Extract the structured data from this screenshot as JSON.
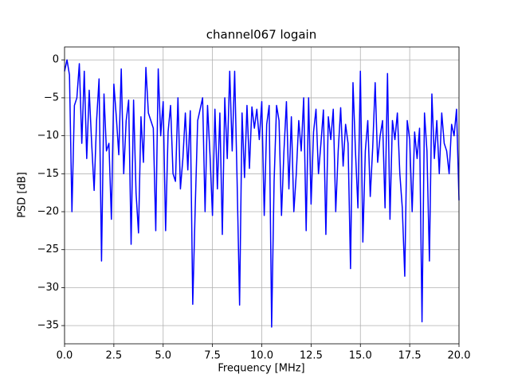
{
  "chart_data": {
    "type": "line",
    "title": "channel067 logain",
    "x_label": "Frequency [MHz]",
    "y_label": "PSD [dB]",
    "xlim": [
      0,
      20
    ],
    "ylim": [
      -37.4,
      1.7
    ],
    "xticks": [
      {
        "value": 0,
        "label": "0.0"
      },
      2.5,
      {
        "value": 5,
        "label": "5.0"
      },
      7.5,
      {
        "value": 10,
        "label": "10.0"
      },
      12.5,
      {
        "value": 15,
        "label": "15.0"
      },
      17.5,
      {
        "value": 20,
        "label": "20.0"
      }
    ],
    "yticks": [
      0,
      {
        "value": -5,
        "label": "−5"
      },
      {
        "value": -10,
        "label": "−10"
      },
      {
        "value": -15,
        "label": "−15"
      },
      {
        "value": -20,
        "label": "−20"
      },
      {
        "value": -25,
        "label": "−25"
      },
      {
        "value": -30,
        "label": "−30"
      },
      {
        "value": -35,
        "label": "−35"
      }
    ],
    "grid": true,
    "series": [
      {
        "color": "#0000ff",
        "x": [
          0,
          0.125,
          0.25,
          0.375,
          0.5,
          0.625,
          0.75,
          0.875,
          1,
          1.125,
          1.25,
          1.375,
          1.5,
          1.625,
          1.75,
          1.875,
          2,
          2.125,
          2.25,
          2.375,
          2.5,
          2.625,
          2.75,
          2.875,
          3,
          3.125,
          3.25,
          3.375,
          3.5,
          3.625,
          3.75,
          3.875,
          4,
          4.125,
          4.25,
          4.375,
          4.5,
          4.625,
          4.75,
          4.875,
          5,
          5.125,
          5.25,
          5.375,
          5.5,
          5.625,
          5.75,
          5.875,
          6,
          6.125,
          6.25,
          6.375,
          6.5,
          6.625,
          6.75,
          6.875,
          7,
          7.125,
          7.25,
          7.375,
          7.5,
          7.625,
          7.75,
          7.875,
          8,
          8.125,
          8.25,
          8.375,
          8.5,
          8.625,
          8.75,
          8.875,
          9,
          9.125,
          9.25,
          9.375,
          9.5,
          9.625,
          9.75,
          9.875,
          10,
          10.125,
          10.25,
          10.375,
          10.5,
          10.625,
          10.75,
          10.875,
          11,
          11.125,
          11.25,
          11.375,
          11.5,
          11.625,
          11.75,
          11.875,
          12,
          12.125,
          12.25,
          12.375,
          12.5,
          12.625,
          12.75,
          12.875,
          13,
          13.125,
          13.25,
          13.375,
          13.5,
          13.625,
          13.75,
          13.875,
          14,
          14.125,
          14.25,
          14.375,
          14.5,
          14.625,
          14.75,
          14.875,
          15,
          15.125,
          15.25,
          15.375,
          15.5,
          15.625,
          15.75,
          15.875,
          16,
          16.125,
          16.25,
          16.375,
          16.5,
          16.625,
          16.75,
          16.875,
          17,
          17.125,
          17.25,
          17.375,
          17.5,
          17.625,
          17.75,
          17.875,
          18,
          18.125,
          18.25,
          18.375,
          18.5,
          18.625,
          18.75,
          18.875,
          19,
          19.125,
          19.25,
          19.375,
          19.5,
          19.625,
          19.75,
          19.875,
          20
        ],
        "values": [
          -1.5,
          0,
          -2,
          -20,
          -6,
          -5,
          -0.5,
          -11,
          -1.5,
          -13,
          -4,
          -11,
          -17.2,
          -8,
          -2.5,
          -26.5,
          -4.5,
          -12,
          -11,
          -21,
          -3.2,
          -7.5,
          -12.5,
          -1.2,
          -15,
          -8,
          -5.3,
          -24.3,
          -5.3,
          -17.5,
          -22.8,
          -7.5,
          -13.5,
          -1,
          -7,
          -8,
          -9,
          -22.5,
          -1.2,
          -10,
          -5.5,
          -22.5,
          -9.5,
          -6,
          -15,
          -16,
          -5,
          -17,
          -13,
          -7,
          -14.5,
          -6.7,
          -32.2,
          -19.5,
          -8,
          -6.5,
          -5,
          -20,
          -6,
          -12.5,
          -20.5,
          -6.5,
          -17,
          -7,
          -23,
          -5,
          -13,
          -1.5,
          -12,
          -1.5,
          -16,
          -32.3,
          -7,
          -15.5,
          -6,
          -14.3,
          -6.2,
          -9,
          -6.5,
          -10.5,
          -5.5,
          -20.5,
          -8.5,
          -6,
          -35.2,
          -16,
          -6,
          -8,
          -20.5,
          -12,
          -5.5,
          -17,
          -7.5,
          -20,
          -15,
          -8,
          -12,
          -5,
          -22.5,
          -5,
          -19,
          -9.5,
          -6.5,
          -15,
          -11,
          -6.6,
          -23,
          -7.5,
          -10.5,
          -6.5,
          -20,
          -12,
          -6.3,
          -14,
          -8.5,
          -11,
          -27.5,
          -3,
          -12,
          -19.5,
          -1.5,
          -24,
          -12,
          -8,
          -18,
          -11.5,
          -3,
          -13.5,
          -10,
          -8,
          -19.5,
          -1.8,
          -21,
          -8,
          -10.5,
          -7,
          -15,
          -19.5,
          -28.5,
          -8,
          -10.5,
          -20,
          -9.5,
          -13,
          -9,
          -34.5,
          -7,
          -12,
          -26.5,
          -4.5,
          -13,
          -8,
          -15,
          -7,
          -11,
          -12,
          -15,
          -8.5,
          -10,
          -6.5,
          -18.5
        ]
      }
    ]
  }
}
